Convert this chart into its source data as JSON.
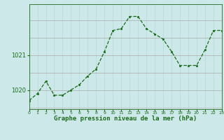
{
  "hours": [
    0,
    1,
    2,
    3,
    4,
    5,
    6,
    7,
    8,
    9,
    10,
    11,
    12,
    13,
    14,
    15,
    16,
    17,
    18,
    19,
    20,
    21,
    22,
    23
  ],
  "pressure": [
    1019.7,
    1019.9,
    1020.25,
    1019.85,
    1019.85,
    1020.0,
    1020.15,
    1020.4,
    1020.6,
    1021.1,
    1021.7,
    1021.75,
    1022.1,
    1022.1,
    1021.75,
    1021.6,
    1021.45,
    1021.1,
    1020.7,
    1020.7,
    1020.7,
    1021.15,
    1021.7,
    1021.7
  ],
  "line_color": "#1a6b1a",
  "marker_color": "#1a6b1a",
  "bg_color": "#cce8e8",
  "grid_color_h": "#aaaaaa",
  "grid_color_v": "#b8d8d8",
  "xlabel": "Graphe pression niveau de la mer (hPa)",
  "xlabel_color": "#1a6b1a",
  "tick_color": "#1a6b1a",
  "ylim": [
    1019.45,
    1022.45
  ],
  "yticks": [
    1020,
    1021
  ],
  "xlim": [
    0,
    23
  ]
}
